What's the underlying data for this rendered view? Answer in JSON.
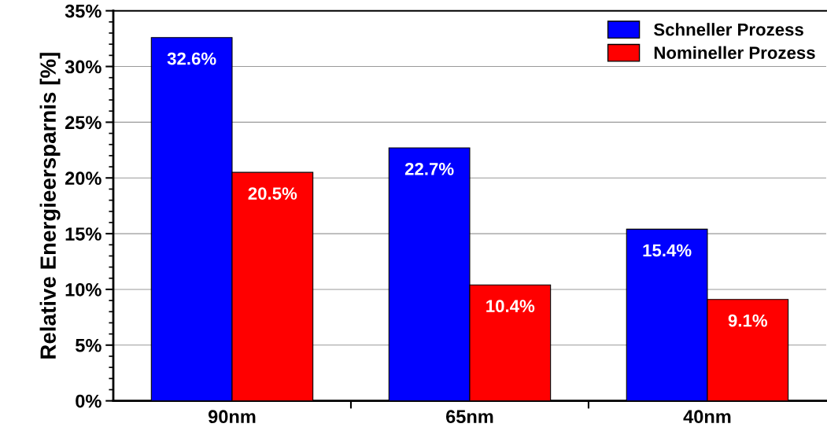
{
  "chart_data": {
    "type": "bar",
    "ylabel": "Relative Energieersparnis [%]",
    "categories": [
      "90nm",
      "65nm",
      "40nm"
    ],
    "series": [
      {
        "name": "Schneller Prozess",
        "color": "#0000ff",
        "values": [
          32.6,
          22.7,
          15.4
        ],
        "value_labels": [
          "32.6%",
          "22.7%",
          "15.4%"
        ]
      },
      {
        "name": "Nomineller Prozess",
        "color": "#ff0000",
        "values": [
          20.5,
          10.4,
          9.1
        ],
        "value_labels": [
          "20.5%",
          "10.4%",
          "9.1%"
        ]
      }
    ],
    "ylim": [
      0,
      35
    ],
    "yticks": [
      {
        "value": 0,
        "label": "0%"
      },
      {
        "value": 1,
        "label": null
      },
      {
        "value": 2,
        "label": null
      },
      {
        "value": 3,
        "label": null
      },
      {
        "value": 4,
        "label": null
      },
      {
        "value": 5,
        "label": "5%"
      },
      {
        "value": 6,
        "label": null
      },
      {
        "value": 7,
        "label": null
      },
      {
        "value": 8,
        "label": null
      },
      {
        "value": 9,
        "label": null
      },
      {
        "value": 10,
        "label": "10%"
      },
      {
        "value": 11,
        "label": null
      },
      {
        "value": 12,
        "label": null
      },
      {
        "value": 13,
        "label": null
      },
      {
        "value": 14,
        "label": null
      },
      {
        "value": 15,
        "label": "15%"
      },
      {
        "value": 16,
        "label": null
      },
      {
        "value": 17,
        "label": null
      },
      {
        "value": 18,
        "label": null
      },
      {
        "value": 19,
        "label": null
      },
      {
        "value": 20,
        "label": "20%"
      },
      {
        "value": 21,
        "label": null
      },
      {
        "value": 22,
        "label": null
      },
      {
        "value": 23,
        "label": null
      },
      {
        "value": 24,
        "label": null
      },
      {
        "value": 25,
        "label": "25%"
      },
      {
        "value": 26,
        "label": null
      },
      {
        "value": 27,
        "label": null
      },
      {
        "value": 28,
        "label": null
      },
      {
        "value": 29,
        "label": null
      },
      {
        "value": 30,
        "label": "30%"
      },
      {
        "value": 31,
        "label": null
      },
      {
        "value": 32,
        "label": null
      },
      {
        "value": 33,
        "label": null
      },
      {
        "value": 34,
        "label": null
      },
      {
        "value": 35,
        "label": "35%"
      }
    ],
    "grid": "y",
    "legend": "top right"
  }
}
